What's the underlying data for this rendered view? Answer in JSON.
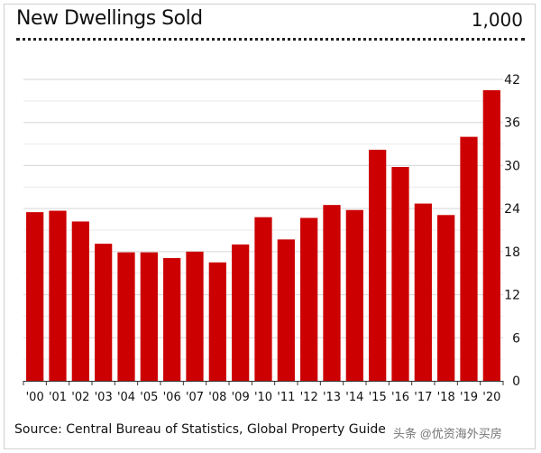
{
  "chart_data": {
    "type": "bar",
    "title": "New Dwellings Sold",
    "unit_label": "1,000",
    "categories": [
      "'00",
      "'01",
      "'02",
      "'03",
      "'04",
      "'05",
      "'06",
      "'07",
      "'08",
      "'09",
      "'10",
      "'11",
      "'12",
      "'13",
      "'14",
      "'15",
      "'16",
      "'17",
      "'18",
      "'19",
      "'20"
    ],
    "values": [
      23.5,
      23.7,
      22.2,
      19.1,
      17.9,
      17.9,
      17.1,
      18.0,
      16.5,
      19.0,
      22.8,
      19.7,
      22.7,
      24.5,
      23.8,
      32.2,
      29.8,
      24.7,
      23.1,
      34.0,
      40.5
    ],
    "yticks": [
      0,
      6,
      12,
      18,
      24,
      30,
      36,
      42
    ],
    "ylim": [
      0,
      42
    ],
    "ytick_side": "right",
    "grid": true,
    "bar_color": "#cc0000",
    "source": "Source: Central Bureau of Statistics, Global Property Guide"
  },
  "watermark": "头条 @优资海外买房"
}
